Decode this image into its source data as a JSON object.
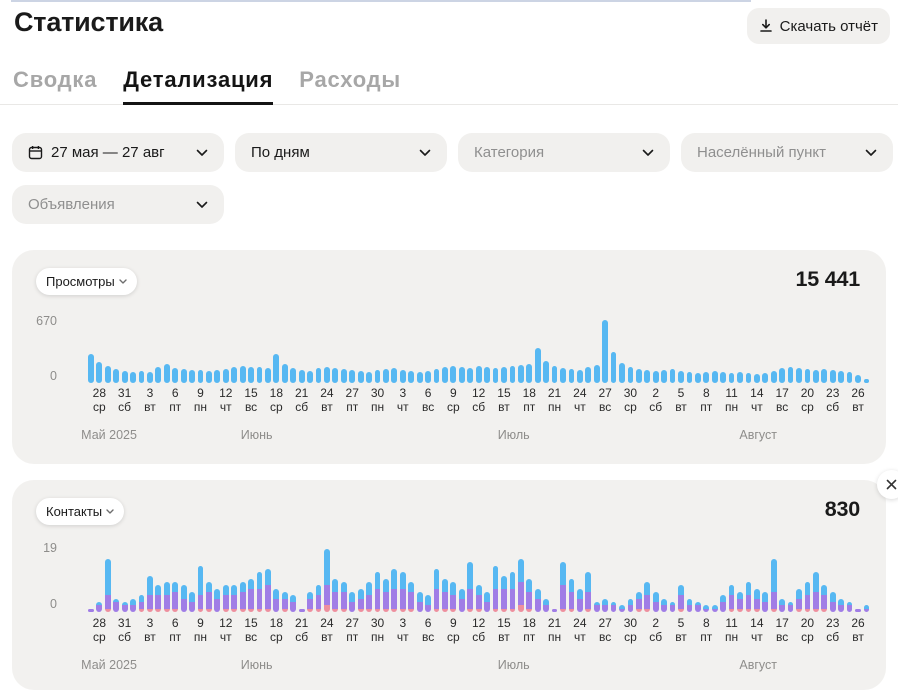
{
  "page": {
    "title": "Статистика"
  },
  "header": {
    "download_button_label": "Скачать отчёт"
  },
  "tabs": {
    "summary": "Сводка",
    "details": "Детализация",
    "expenses": "Расходы",
    "active": "Детализация"
  },
  "filters": {
    "date_range": "27 мая — 27 авг",
    "grouping": "По дням",
    "category_placeholder": "Категория",
    "location_placeholder": "Населённый пункт",
    "ads_placeholder": "Объявления"
  },
  "x_axis": {
    "ticks": [
      {
        "index": 1,
        "day": "28",
        "weekday": "ср"
      },
      {
        "index": 4,
        "day": "31",
        "weekday": "сб"
      },
      {
        "index": 7,
        "day": "3",
        "weekday": "вт"
      },
      {
        "index": 10,
        "day": "6",
        "weekday": "пт"
      },
      {
        "index": 13,
        "day": "9",
        "weekday": "пн"
      },
      {
        "index": 16,
        "day": "12",
        "weekday": "чт"
      },
      {
        "index": 19,
        "day": "15",
        "weekday": "вс"
      },
      {
        "index": 22,
        "day": "18",
        "weekday": "ср"
      },
      {
        "index": 25,
        "day": "21",
        "weekday": "сб"
      },
      {
        "index": 28,
        "day": "24",
        "weekday": "вт"
      },
      {
        "index": 31,
        "day": "27",
        "weekday": "пт"
      },
      {
        "index": 34,
        "day": "30",
        "weekday": "пн"
      },
      {
        "index": 37,
        "day": "3",
        "weekday": "чт"
      },
      {
        "index": 40,
        "day": "6",
        "weekday": "вс"
      },
      {
        "index": 43,
        "day": "9",
        "weekday": "ср"
      },
      {
        "index": 46,
        "day": "12",
        "weekday": "сб"
      },
      {
        "index": 49,
        "day": "15",
        "weekday": "вт"
      },
      {
        "index": 52,
        "day": "18",
        "weekday": "пт"
      },
      {
        "index": 55,
        "day": "21",
        "weekday": "пн"
      },
      {
        "index": 58,
        "day": "24",
        "weekday": "чт"
      },
      {
        "index": 61,
        "day": "27",
        "weekday": "вс"
      },
      {
        "index": 64,
        "day": "30",
        "weekday": "ср"
      },
      {
        "index": 67,
        "day": "2",
        "weekday": "сб"
      },
      {
        "index": 70,
        "day": "5",
        "weekday": "вт"
      },
      {
        "index": 73,
        "day": "8",
        "weekday": "пт"
      },
      {
        "index": 76,
        "day": "11",
        "weekday": "пн"
      },
      {
        "index": 79,
        "day": "14",
        "weekday": "чт"
      },
      {
        "index": 82,
        "day": "17",
        "weekday": "вс"
      },
      {
        "index": 85,
        "day": "20",
        "weekday": "ср"
      },
      {
        "index": 88,
        "day": "23",
        "weekday": "сб"
      },
      {
        "index": 91,
        "day": "26",
        "weekday": "вт"
      }
    ],
    "months": [
      {
        "label": "Май 2025",
        "from": 0,
        "to": 4
      },
      {
        "label": "Июнь",
        "from": 5,
        "to": 34
      },
      {
        "label": "Июль",
        "from": 35,
        "to": 65
      },
      {
        "label": "Август",
        "from": 66,
        "to": 92
      }
    ]
  },
  "chart_data": [
    {
      "type": "bar",
      "metric": "Просмотры",
      "total": "15 441",
      "y_max": 670,
      "y_max_label": "670",
      "y_min_label": "0",
      "color": "#57b8f2",
      "values": [
        310,
        225,
        185,
        150,
        130,
        120,
        130,
        120,
        170,
        200,
        160,
        150,
        140,
        140,
        130,
        140,
        150,
        170,
        180,
        170,
        170,
        160,
        310,
        200,
        160,
        140,
        130,
        160,
        170,
        160,
        150,
        140,
        130,
        120,
        140,
        150,
        160,
        140,
        130,
        120,
        130,
        150,
        170,
        180,
        170,
        160,
        180,
        170,
        160,
        170,
        180,
        190,
        200,
        370,
        230,
        180,
        160,
        150,
        140,
        170,
        190,
        670,
        330,
        210,
        170,
        150,
        140,
        130,
        140,
        150,
        130,
        120,
        110,
        120,
        130,
        120,
        110,
        120,
        110,
        100,
        110,
        130,
        160,
        170,
        160,
        150,
        140,
        150,
        140,
        130,
        120,
        90,
        40
      ]
    },
    {
      "type": "stacked-bar",
      "metric": "Контакты",
      "total": "830",
      "y_max": 19,
      "y_max_label": "19",
      "y_min_label": "0",
      "series": [
        {
          "name": "segment-pink",
          "color": "#ee8f9e",
          "values": [
            0,
            0,
            1,
            0,
            0,
            0,
            1,
            1,
            1,
            1,
            1,
            0,
            0,
            1,
            1,
            0,
            1,
            1,
            1,
            1,
            1,
            1,
            0,
            1,
            0,
            0,
            1,
            1,
            2,
            1,
            1,
            0,
            1,
            1,
            1,
            1,
            1,
            1,
            1,
            0,
            0,
            1,
            1,
            1,
            0,
            1,
            1,
            0,
            1,
            1,
            1,
            2,
            1,
            0,
            0,
            0,
            1,
            1,
            0,
            1,
            0,
            0,
            0,
            0,
            0,
            1,
            1,
            0,
            0,
            0,
            1,
            0,
            0,
            0,
            0,
            0,
            1,
            1,
            1,
            1,
            0,
            1,
            0,
            0,
            1,
            1,
            1,
            1,
            0,
            0,
            0,
            0,
            0
          ]
        },
        {
          "name": "segment-purple",
          "color": "#a07de6",
          "values": [
            1,
            2,
            4,
            3,
            2,
            2,
            2,
            4,
            4,
            4,
            5,
            4,
            3,
            4,
            5,
            4,
            4,
            4,
            5,
            6,
            6,
            7,
            4,
            3,
            3,
            1,
            3,
            4,
            6,
            5,
            5,
            3,
            3,
            4,
            6,
            5,
            6,
            6,
            5,
            3,
            2,
            6,
            5,
            4,
            4,
            6,
            4,
            3,
            6,
            6,
            6,
            7,
            5,
            4,
            2,
            1,
            7,
            5,
            4,
            5,
            2,
            2,
            2,
            1,
            2,
            3,
            4,
            3,
            2,
            2,
            4,
            2,
            2,
            1,
            1,
            3,
            4,
            3,
            4,
            3,
            3,
            5,
            2,
            2,
            3,
            4,
            5,
            4,
            3,
            2,
            2,
            1,
            1
          ]
        },
        {
          "name": "segment-blue",
          "color": "#57b8f2",
          "values": [
            0,
            1,
            11,
            1,
            1,
            2,
            2,
            6,
            3,
            4,
            3,
            4,
            3,
            9,
            3,
            3,
            3,
            3,
            3,
            3,
            5,
            5,
            3,
            2,
            2,
            0,
            2,
            3,
            11,
            4,
            3,
            3,
            3,
            4,
            5,
            4,
            6,
            5,
            3,
            3,
            3,
            6,
            4,
            4,
            3,
            8,
            3,
            3,
            7,
            4,
            5,
            7,
            4,
            3,
            2,
            0,
            7,
            4,
            3,
            6,
            1,
            2,
            1,
            1,
            2,
            2,
            4,
            3,
            2,
            1,
            3,
            2,
            1,
            1,
            1,
            2,
            3,
            2,
            4,
            3,
            3,
            10,
            2,
            1,
            3,
            4,
            6,
            3,
            3,
            2,
            1,
            0,
            1
          ]
        }
      ]
    }
  ],
  "close_button": "×"
}
